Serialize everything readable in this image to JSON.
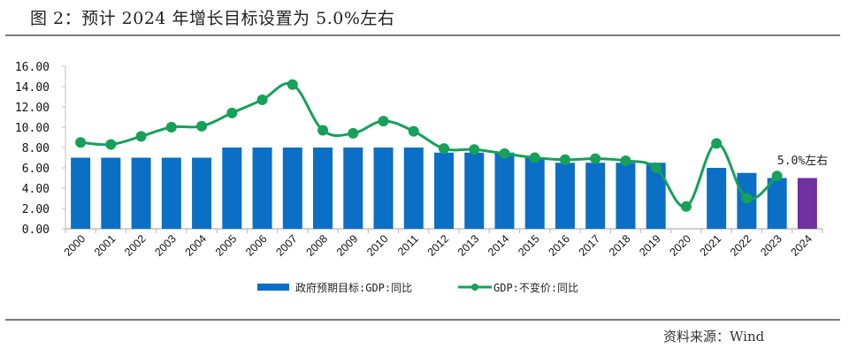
{
  "header": {
    "title": "图 2：预计 2024 年增长目标设置为 5.0%左右"
  },
  "footer": {
    "source": "资料来源：Wind"
  },
  "colors": {
    "bar": "#0B6FC6",
    "bar_highlight": "#7030A0",
    "line": "#16A05A",
    "axis": "#bfbfbf",
    "rule": "#7a7a7a"
  },
  "chart_data": {
    "type": "bar",
    "title": "预计 2024 年增长目标设置为 5.0%左右",
    "xlabel": "",
    "ylabel": "",
    "ylim": [
      0,
      16
    ],
    "yticks": [
      0,
      2,
      4,
      6,
      8,
      10,
      12,
      14,
      16
    ],
    "ytick_labels": [
      "0.00",
      "2.00",
      "4.00",
      "6.00",
      "8.00",
      "10.00",
      "12.00",
      "14.00",
      "16.00"
    ],
    "grid": false,
    "legend_position": "bottom-center",
    "categories": [
      "2000",
      "2001",
      "2002",
      "2003",
      "2004",
      "2005",
      "2006",
      "2007",
      "2008",
      "2009",
      "2010",
      "2011",
      "2012",
      "2013",
      "2014",
      "2015",
      "2016",
      "2017",
      "2018",
      "2019",
      "2020",
      "2021",
      "2022",
      "2023",
      "2024"
    ],
    "series": [
      {
        "name": "政府预期目标:GDP:同比",
        "type": "bar",
        "values": [
          7.0,
          7.0,
          7.0,
          7.0,
          7.0,
          8.0,
          8.0,
          8.0,
          8.0,
          8.0,
          8.0,
          8.0,
          7.5,
          7.5,
          7.5,
          7.0,
          6.5,
          6.5,
          6.5,
          6.5,
          null,
          6.0,
          5.5,
          5.0,
          5.0
        ],
        "highlight_index": 24
      },
      {
        "name": "GDP:不变价:同比",
        "type": "line",
        "values": [
          8.5,
          8.3,
          9.1,
          10.0,
          10.1,
          11.4,
          12.7,
          14.2,
          9.7,
          9.4,
          10.6,
          9.6,
          7.9,
          7.8,
          7.4,
          7.0,
          6.8,
          6.9,
          6.7,
          6.0,
          2.2,
          8.4,
          3.0,
          5.2,
          null
        ]
      }
    ],
    "annotations": [
      {
        "text": "5.0%左右",
        "category": "2024"
      }
    ]
  }
}
